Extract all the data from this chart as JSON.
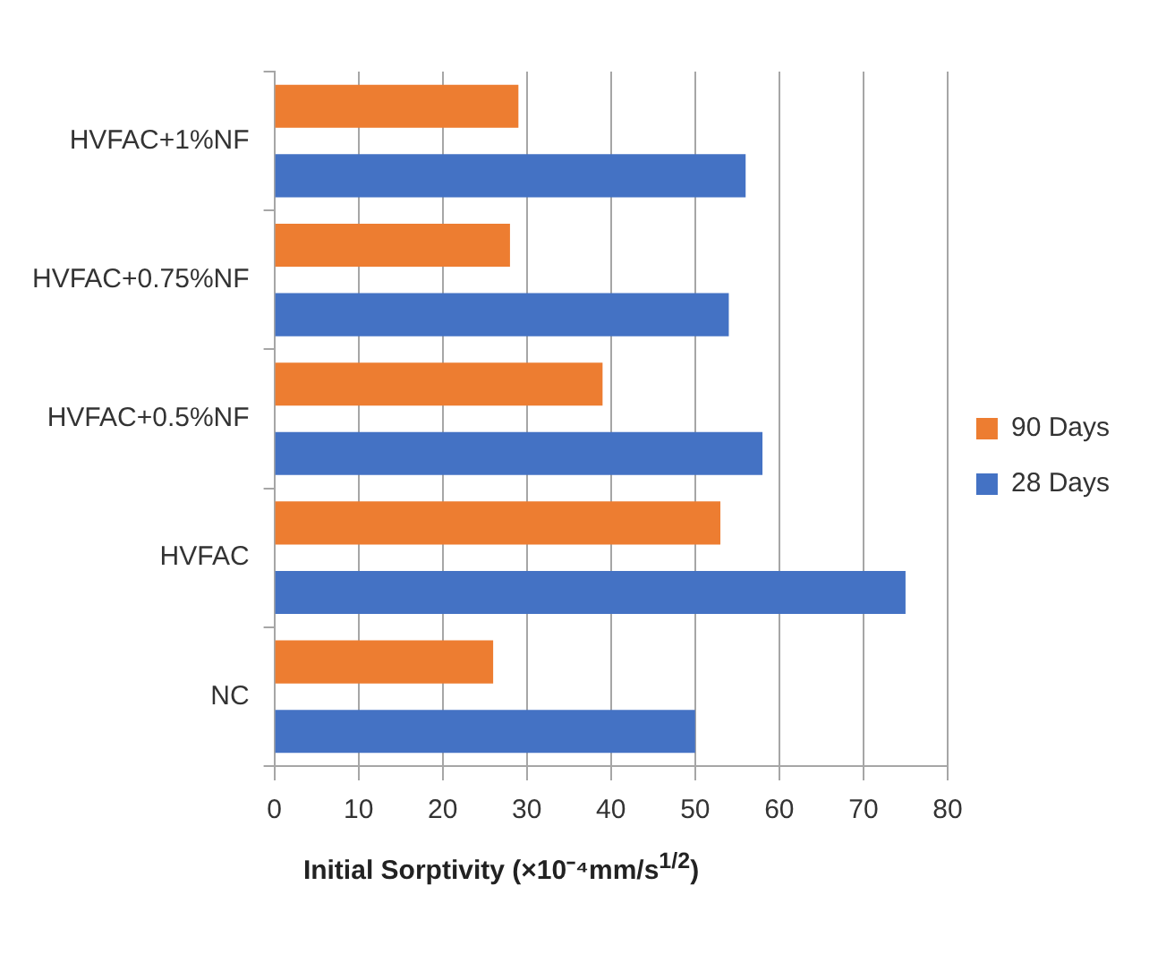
{
  "chart_data": {
    "type": "bar",
    "orientation": "horizontal",
    "xlabel": "Initial Sorptivity (×10⁻⁴mm/s$^{1/2}$)",
    "categories": [
      "HVFAC+1%NF",
      "HVFAC+0.75%NF",
      "HVFAC+0.5%NF",
      "HVFAC",
      "NC"
    ],
    "series": [
      {
        "name": "90 Days",
        "color": "#ed7d31",
        "values": [
          29,
          28,
          39,
          53,
          26
        ]
      },
      {
        "name": "28 Days",
        "color": "#4472c4",
        "values": [
          56,
          54,
          58,
          75,
          50
        ]
      }
    ],
    "xlim": [
      0,
      80
    ],
    "xticks": [
      0,
      10,
      20,
      30,
      40,
      50,
      60,
      70,
      80
    ],
    "grid": "x",
    "legend": "right"
  }
}
